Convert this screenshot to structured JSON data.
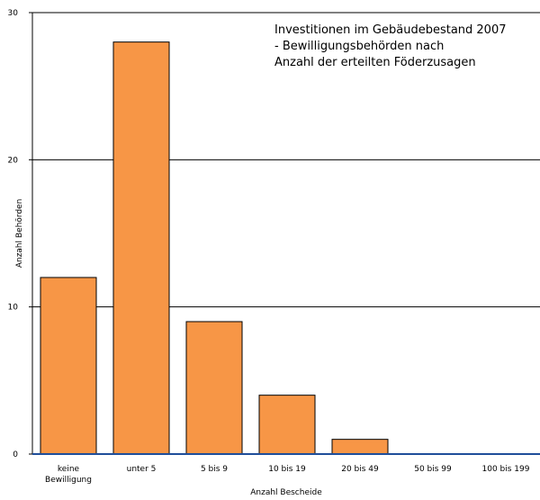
{
  "chart_data": {
    "type": "bar",
    "title_lines": [
      "Investitionen im Gebäudebestand 2007",
      "- Bewilligungsbehörden nach",
      "Anzahl der erteilten Föderzusagen"
    ],
    "xlabel": "Anzahl Bescheide",
    "ylabel": "Anzahl Behörden",
    "categories": [
      [
        "keine",
        "Bewilligung"
      ],
      [
        "unter    5"
      ],
      [
        "5 bis   9"
      ],
      [
        "10 bis    19"
      ],
      [
        "20 bis    49"
      ],
      [
        "50 bis    99"
      ],
      [
        "100 bis 199"
      ]
    ],
    "values": [
      12,
      28,
      9,
      4,
      1,
      0,
      0
    ],
    "ylim": [
      0,
      30
    ],
    "yticks": [
      0,
      10,
      20,
      30
    ],
    "grid": true,
    "colors": {
      "bar_fill": "#F79646",
      "bar_stroke": "#000000",
      "baseline": "#1F4E9A",
      "grid": "#000000"
    }
  }
}
